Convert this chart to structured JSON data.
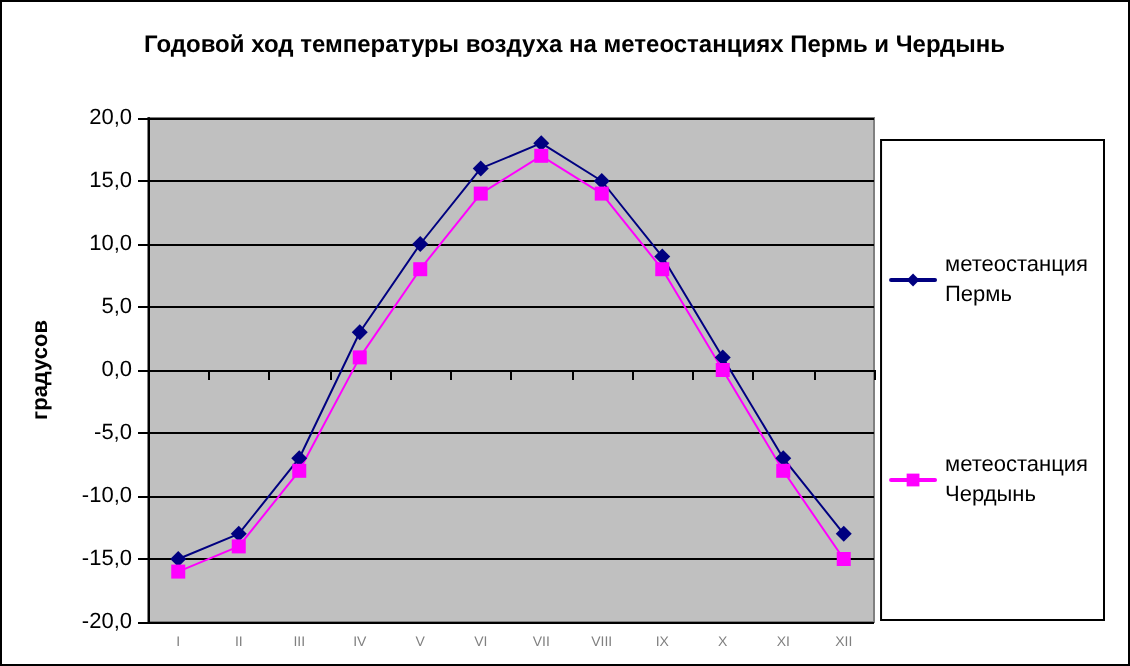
{
  "chart_data": {
    "type": "line",
    "title": "Годовой ход температуры воздуха на метеостанциях Пермь и Чердынь",
    "ylabel": "градусов",
    "categories": [
      "I",
      "II",
      "III",
      "IV",
      "V",
      "VI",
      "VII",
      "VIII",
      "IX",
      "X",
      "XI",
      "XII"
    ],
    "series": [
      {
        "name": "метеостанция Пермь",
        "color": "#000080",
        "marker": "diamond",
        "values": [
          -15,
          -13,
          -7,
          3,
          10,
          16,
          18,
          15,
          9,
          1,
          -7,
          -13
        ]
      },
      {
        "name": "метеостанция Чердынь",
        "color": "#ff00ff",
        "marker": "square",
        "values": [
          -16,
          -14,
          -8,
          1,
          8,
          14,
          17,
          14,
          8,
          0,
          -8,
          -15
        ]
      }
    ],
    "ylim": [
      -20,
      20
    ],
    "yticks": [
      {
        "value": -20,
        "label": "-20,0"
      },
      {
        "value": -15,
        "label": "-15,0"
      },
      {
        "value": -10,
        "label": "-10,0"
      },
      {
        "value": -5,
        "label": "-5,0"
      },
      {
        "value": 0,
        "label": "0,0"
      },
      {
        "value": 5,
        "label": "5,0"
      },
      {
        "value": 10,
        "label": "10,0"
      },
      {
        "value": 15,
        "label": "15,0"
      },
      {
        "value": 20,
        "label": "20,0"
      }
    ],
    "grid": "y",
    "legend": "right",
    "line_style": "solid"
  }
}
